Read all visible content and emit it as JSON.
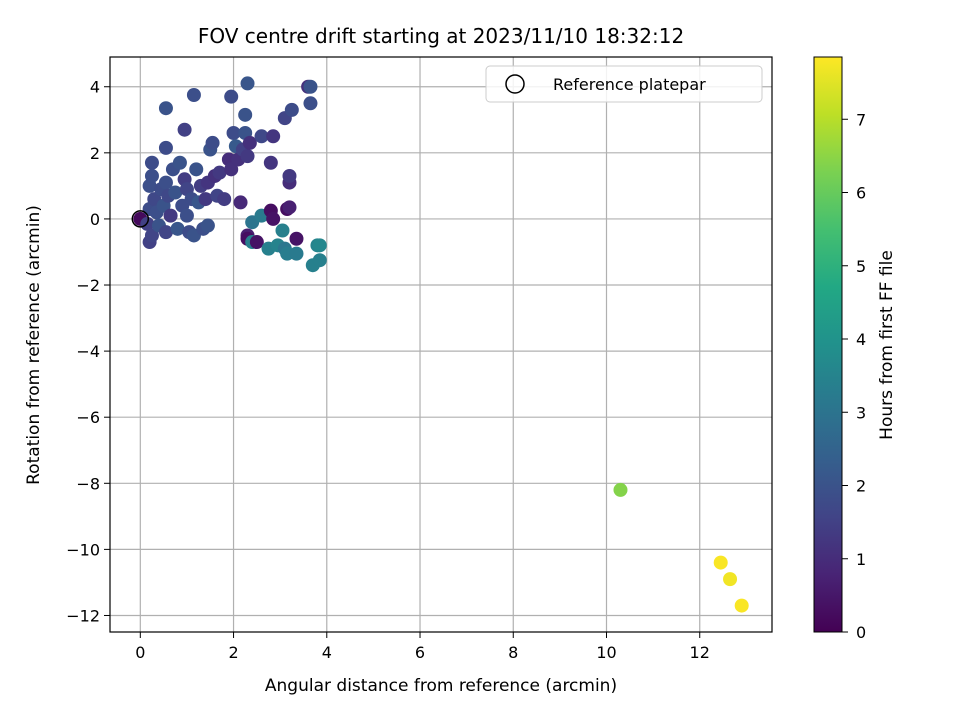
{
  "chart_data": {
    "type": "scatter",
    "title": "FOV centre drift starting at 2023/11/10 18:32:12",
    "xlabel": "Angular distance from reference (arcmin)",
    "ylabel": "Rotation from reference (arcmin)",
    "xlim": [
      -0.65,
      13.55
    ],
    "ylim": [
      -12.5,
      4.9
    ],
    "xticks": [
      0,
      2,
      4,
      6,
      8,
      10,
      12
    ],
    "yticks": [
      -12,
      -10,
      -8,
      -6,
      -4,
      -2,
      0,
      2,
      4
    ],
    "grid": true,
    "legend": {
      "placement": "top-right",
      "entries": [
        "Reference platepar"
      ]
    },
    "reference_point": {
      "x": 0,
      "y": 0,
      "label": "Reference platepar"
    },
    "colorbar": {
      "label": "Hours from first FF file",
      "range": [
        0,
        7.85
      ],
      "ticks": [
        0,
        1,
        2,
        3,
        4,
        5,
        6,
        7
      ],
      "colormap": "viridis"
    },
    "points": [
      {
        "x": 0.0,
        "y": 0.0,
        "c": 0.2
      },
      {
        "x": 0.15,
        "y": -0.15,
        "c": 1.5
      },
      {
        "x": 0.2,
        "y": -0.7,
        "c": 1.5
      },
      {
        "x": 0.25,
        "y": -0.5,
        "c": 1.6
      },
      {
        "x": 0.2,
        "y": 0.3,
        "c": 1.8
      },
      {
        "x": 0.2,
        "y": 1.0,
        "c": 1.9
      },
      {
        "x": 0.25,
        "y": 1.3,
        "c": 1.9
      },
      {
        "x": 0.25,
        "y": 1.7,
        "c": 1.8
      },
      {
        "x": 0.3,
        "y": 0.6,
        "c": 1.7
      },
      {
        "x": 0.35,
        "y": 0.2,
        "c": 1.9
      },
      {
        "x": 0.4,
        "y": -0.2,
        "c": 2.0
      },
      {
        "x": 0.45,
        "y": 0.9,
        "c": 1.8
      },
      {
        "x": 0.5,
        "y": 0.4,
        "c": 2.0
      },
      {
        "x": 0.55,
        "y": -0.4,
        "c": 1.6
      },
      {
        "x": 0.55,
        "y": 1.1,
        "c": 1.9
      },
      {
        "x": 0.6,
        "y": 0.7,
        "c": 1.7
      },
      {
        "x": 0.65,
        "y": 0.1,
        "c": 1.3
      },
      {
        "x": 0.7,
        "y": 1.5,
        "c": 1.9
      },
      {
        "x": 0.75,
        "y": 0.8,
        "c": 2.0
      },
      {
        "x": 0.8,
        "y": -0.3,
        "c": 2.1
      },
      {
        "x": 0.85,
        "y": 1.7,
        "c": 2.0
      },
      {
        "x": 0.9,
        "y": 0.4,
        "c": 1.8
      },
      {
        "x": 0.95,
        "y": 1.2,
        "c": 1.4
      },
      {
        "x": 1.0,
        "y": 0.9,
        "c": 1.6
      },
      {
        "x": 1.0,
        "y": 0.1,
        "c": 1.9
      },
      {
        "x": 1.05,
        "y": -0.4,
        "c": 1.8
      },
      {
        "x": 1.1,
        "y": 0.6,
        "c": 1.8
      },
      {
        "x": 1.15,
        "y": -0.5,
        "c": 2.0
      },
      {
        "x": 1.2,
        "y": 1.5,
        "c": 2.0
      },
      {
        "x": 1.25,
        "y": 0.5,
        "c": 2.1
      },
      {
        "x": 1.3,
        "y": 1.0,
        "c": 1.4
      },
      {
        "x": 1.35,
        "y": -0.3,
        "c": 1.9
      },
      {
        "x": 1.4,
        "y": 0.6,
        "c": 1.3
      },
      {
        "x": 1.45,
        "y": 1.1,
        "c": 1.2
      },
      {
        "x": 1.45,
        "y": -0.2,
        "c": 2.0
      },
      {
        "x": 1.5,
        "y": 2.1,
        "c": 2.0
      },
      {
        "x": 1.55,
        "y": 2.3,
        "c": 1.8
      },
      {
        "x": 1.6,
        "y": 1.3,
        "c": 1.1
      },
      {
        "x": 1.65,
        "y": 0.7,
        "c": 1.6
      },
      {
        "x": 1.7,
        "y": 1.4,
        "c": 1.3
      },
      {
        "x": 1.8,
        "y": 0.6,
        "c": 1.4
      },
      {
        "x": 1.9,
        "y": 1.8,
        "c": 1.0
      },
      {
        "x": 1.95,
        "y": 1.5,
        "c": 1.1
      },
      {
        "x": 2.0,
        "y": 2.6,
        "c": 1.8
      },
      {
        "x": 2.05,
        "y": 2.2,
        "c": 2.2
      },
      {
        "x": 2.1,
        "y": 1.8,
        "c": 1.1
      },
      {
        "x": 2.15,
        "y": 0.5,
        "c": 0.9
      },
      {
        "x": 2.2,
        "y": 2.1,
        "c": 1.5
      },
      {
        "x": 2.25,
        "y": 2.6,
        "c": 2.0
      },
      {
        "x": 2.3,
        "y": 1.9,
        "c": 1.3
      },
      {
        "x": 2.35,
        "y": 2.3,
        "c": 1.1
      },
      {
        "x": 2.3,
        "y": -0.5,
        "c": 0.7
      },
      {
        "x": 2.3,
        "y": -0.6,
        "c": 0.3
      },
      {
        "x": 2.4,
        "y": -0.7,
        "c": 3.4
      },
      {
        "x": 2.5,
        "y": -0.7,
        "c": 0.4
      },
      {
        "x": 2.4,
        "y": -0.1,
        "c": 3.0
      },
      {
        "x": 2.6,
        "y": 0.1,
        "c": 3.2
      },
      {
        "x": 2.6,
        "y": 2.5,
        "c": 1.7
      },
      {
        "x": 2.8,
        "y": 1.7,
        "c": 1.2
      },
      {
        "x": 2.75,
        "y": -0.9,
        "c": 3.4
      },
      {
        "x": 2.8,
        "y": 0.25,
        "c": 0.3
      },
      {
        "x": 2.85,
        "y": 0.0,
        "c": 0.4
      },
      {
        "x": 2.85,
        "y": 2.5,
        "c": 1.2
      },
      {
        "x": 2.95,
        "y": -0.8,
        "c": 3.5
      },
      {
        "x": 3.05,
        "y": -0.35,
        "c": 3.4
      },
      {
        "x": 3.1,
        "y": -0.9,
        "c": 3.1
      },
      {
        "x": 3.1,
        "y": 3.05,
        "c": 1.6
      },
      {
        "x": 3.15,
        "y": -1.05,
        "c": 3.3
      },
      {
        "x": 3.15,
        "y": 0.3,
        "c": 0.3
      },
      {
        "x": 3.2,
        "y": 0.35,
        "c": 0.7
      },
      {
        "x": 3.2,
        "y": 1.1,
        "c": 1.0
      },
      {
        "x": 3.2,
        "y": 1.3,
        "c": 1.3
      },
      {
        "x": 3.25,
        "y": 3.3,
        "c": 1.8
      },
      {
        "x": 3.35,
        "y": -1.05,
        "c": 3.2
      },
      {
        "x": 3.35,
        "y": -0.6,
        "c": 0.4
      },
      {
        "x": 3.6,
        "y": 4.0,
        "c": 1.1
      },
      {
        "x": 3.65,
        "y": 4.0,
        "c": 2.0
      },
      {
        "x": 3.65,
        "y": 3.5,
        "c": 1.9
      },
      {
        "x": 3.7,
        "y": -1.4,
        "c": 3.4
      },
      {
        "x": 3.8,
        "y": -0.8,
        "c": 3.5
      },
      {
        "x": 3.85,
        "y": -0.8,
        "c": 3.6
      },
      {
        "x": 3.85,
        "y": -1.25,
        "c": 3.4
      },
      {
        "x": 0.55,
        "y": 3.35,
        "c": 2.0
      },
      {
        "x": 0.55,
        "y": 2.15,
        "c": 1.8
      },
      {
        "x": 0.95,
        "y": 2.7,
        "c": 1.5
      },
      {
        "x": 1.15,
        "y": 3.75,
        "c": 1.9
      },
      {
        "x": 1.95,
        "y": 3.7,
        "c": 1.8
      },
      {
        "x": 2.25,
        "y": 3.15,
        "c": 2.0
      },
      {
        "x": 2.3,
        "y": 4.1,
        "c": 2.1
      },
      {
        "x": 10.3,
        "y": -8.2,
        "c": 6.4
      },
      {
        "x": 12.45,
        "y": -10.4,
        "c": 7.8
      },
      {
        "x": 12.65,
        "y": -10.9,
        "c": 7.7
      },
      {
        "x": 12.9,
        "y": -11.7,
        "c": 7.8
      }
    ]
  }
}
